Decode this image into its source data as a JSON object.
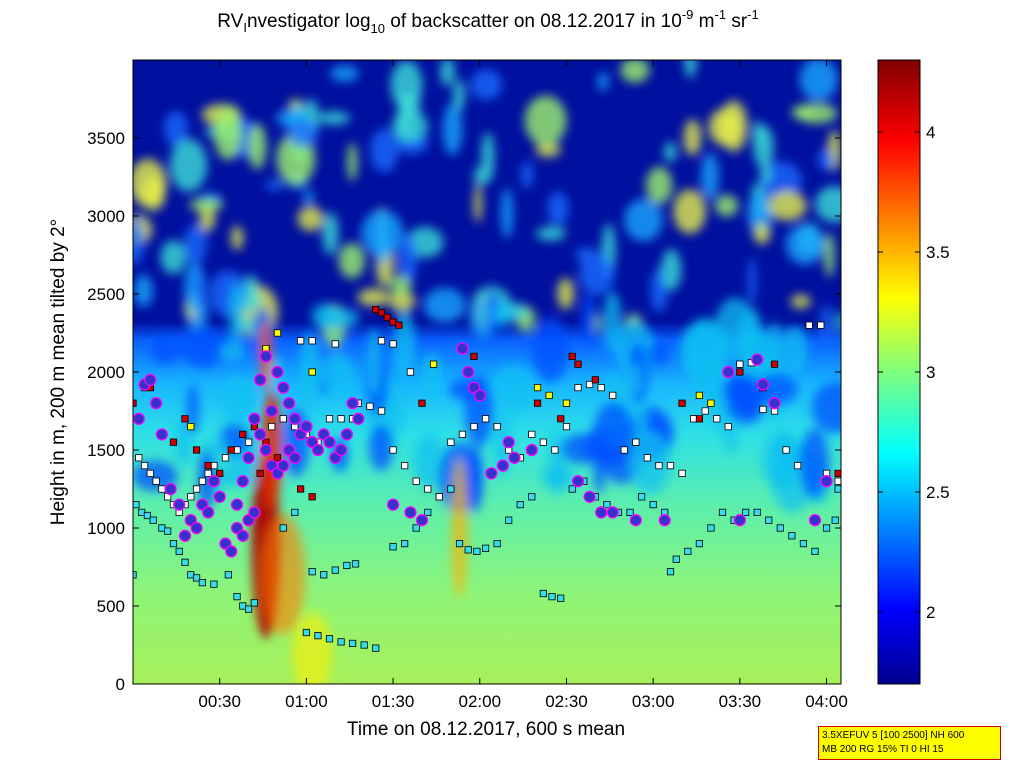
{
  "chart_data": {
    "type": "heatmap",
    "title_parts": {
      "t1": "RV",
      "t1_sub": "I",
      "t2": "nvestigator log",
      "t2_sub": "10",
      "t3": " of backscatter on 08.12.2017 in 10",
      "t3_sup": "-9",
      "t4": " m",
      "t4_sup": "-1",
      "t5": " sr",
      "t5_sup": "-1"
    },
    "xlabel": "Time on 08.12.2017, 600 s mean",
    "ylabel": "Height in m, 200 m mean tilted by 2°",
    "x_range_minutes": [
      0,
      245
    ],
    "x_tick_minutes": [
      30,
      60,
      90,
      120,
      150,
      180,
      210,
      240
    ],
    "x_tick_labels": [
      "00:30",
      "01:00",
      "01:30",
      "02:00",
      "02:30",
      "03:00",
      "03:30",
      "04:00"
    ],
    "ylim": [
      0,
      4000
    ],
    "y_ticks": [
      0,
      500,
      1000,
      1500,
      2000,
      2500,
      3000,
      3500
    ],
    "y_tick_labels": [
      "0",
      "500",
      "1000",
      "1500",
      "2000",
      "2500",
      "3000",
      "3500"
    ],
    "colorbar": {
      "range": [
        1.7,
        4.3
      ],
      "ticks": [
        2,
        2.5,
        3,
        3.5,
        4
      ],
      "tick_labels": [
        "2",
        "2.5",
        "3",
        "3.5",
        "4"
      ],
      "colormap": "jet"
    },
    "layers": [
      {
        "name": "background",
        "value": 2.9,
        "description_color": "#7fff7f"
      },
      {
        "name": "upper_clear",
        "value": 1.75,
        "height_above_m": 2200
      }
    ],
    "marker_colors": {
      "cyan": "#33ddee",
      "white": "#ffffff",
      "red": "#cc0000",
      "yellow": "#ffff00",
      "blue_circle_fill": "#3333cc",
      "blue_circle_edge": "#ff00ff"
    },
    "markers": [
      {
        "series": "cyan",
        "points": [
          [
            1,
            1150
          ],
          [
            3,
            1100
          ],
          [
            5,
            1080
          ],
          [
            7,
            1050
          ],
          [
            10,
            1000
          ],
          [
            12,
            980
          ],
          [
            14,
            900
          ],
          [
            16,
            850
          ],
          [
            18,
            780
          ],
          [
            20,
            700
          ],
          [
            22,
            680
          ],
          [
            24,
            650
          ],
          [
            28,
            640
          ],
          [
            33,
            700
          ],
          [
            36,
            560
          ],
          [
            38,
            500
          ],
          [
            40,
            480
          ],
          [
            42,
            520
          ],
          [
            52,
            1000
          ],
          [
            56,
            1100
          ],
          [
            62,
            720
          ],
          [
            66,
            700
          ],
          [
            70,
            730
          ],
          [
            74,
            760
          ],
          [
            77,
            770
          ],
          [
            60,
            330
          ],
          [
            64,
            310
          ],
          [
            68,
            290
          ],
          [
            72,
            270
          ],
          [
            76,
            260
          ],
          [
            80,
            250
          ],
          [
            84,
            230
          ],
          [
            90,
            880
          ],
          [
            94,
            900
          ],
          [
            98,
            1000
          ],
          [
            102,
            1100
          ],
          [
            106,
            1200
          ],
          [
            110,
            1250
          ],
          [
            113,
            900
          ],
          [
            116,
            860
          ],
          [
            119,
            850
          ],
          [
            122,
            870
          ],
          [
            126,
            900
          ],
          [
            130,
            1050
          ],
          [
            134,
            1150
          ],
          [
            138,
            1200
          ],
          [
            142,
            580
          ],
          [
            145,
            560
          ],
          [
            148,
            550
          ],
          [
            152,
            1250
          ],
          [
            156,
            1300
          ],
          [
            160,
            1200
          ],
          [
            164,
            1150
          ],
          [
            168,
            1100
          ],
          [
            172,
            1100
          ],
          [
            176,
            1200
          ],
          [
            180,
            1150
          ],
          [
            184,
            1100
          ],
          [
            186,
            720
          ],
          [
            188,
            800
          ],
          [
            192,
            850
          ],
          [
            196,
            900
          ],
          [
            200,
            1000
          ],
          [
            204,
            1100
          ],
          [
            208,
            1050
          ],
          [
            212,
            1100
          ],
          [
            216,
            1100
          ],
          [
            220,
            1050
          ],
          [
            224,
            1000
          ],
          [
            228,
            950
          ],
          [
            232,
            900
          ],
          [
            236,
            850
          ],
          [
            240,
            1000
          ],
          [
            243,
            1050
          ],
          [
            0,
            700
          ],
          [
            240,
            1300
          ],
          [
            244,
            1250
          ]
        ]
      },
      {
        "series": "white",
        "points": [
          [
            2,
            1450
          ],
          [
            4,
            1400
          ],
          [
            6,
            1350
          ],
          [
            8,
            1300
          ],
          [
            10,
            1250
          ],
          [
            12,
            1200
          ],
          [
            14,
            1150
          ],
          [
            16,
            1100
          ],
          [
            18,
            1150
          ],
          [
            20,
            1200
          ],
          [
            22,
            1250
          ],
          [
            24,
            1300
          ],
          [
            26,
            1350
          ],
          [
            28,
            1400
          ],
          [
            32,
            1450
          ],
          [
            36,
            1500
          ],
          [
            40,
            1550
          ],
          [
            44,
            1600
          ],
          [
            48,
            1650
          ],
          [
            52,
            1700
          ],
          [
            56,
            1650
          ],
          [
            60,
            1600
          ],
          [
            64,
            1550
          ],
          [
            68,
            1700
          ],
          [
            72,
            1700
          ],
          [
            76,
            1700
          ],
          [
            78,
            1800
          ],
          [
            82,
            1780
          ],
          [
            86,
            1750
          ],
          [
            90,
            1500
          ],
          [
            94,
            1400
          ],
          [
            98,
            1300
          ],
          [
            102,
            1250
          ],
          [
            106,
            1200
          ],
          [
            110,
            1550
          ],
          [
            114,
            1600
          ],
          [
            118,
            1650
          ],
          [
            122,
            1700
          ],
          [
            126,
            1650
          ],
          [
            130,
            1500
          ],
          [
            134,
            1450
          ],
          [
            138,
            1600
          ],
          [
            142,
            1550
          ],
          [
            146,
            1500
          ],
          [
            150,
            1650
          ],
          [
            154,
            1900
          ],
          [
            158,
            1920
          ],
          [
            162,
            1900
          ],
          [
            166,
            1850
          ],
          [
            170,
            1500
          ],
          [
            174,
            1550
          ],
          [
            178,
            1450
          ],
          [
            182,
            1400
          ],
          [
            186,
            1400
          ],
          [
            190,
            1350
          ],
          [
            194,
            1700
          ],
          [
            198,
            1750
          ],
          [
            202,
            1700
          ],
          [
            206,
            1650
          ],
          [
            210,
            2050
          ],
          [
            214,
            2060
          ],
          [
            218,
            1760
          ],
          [
            222,
            1750
          ],
          [
            226,
            1500
          ],
          [
            230,
            1400
          ],
          [
            234,
            2300
          ],
          [
            238,
            2300
          ],
          [
            240,
            1350
          ],
          [
            244,
            1300
          ],
          [
            86,
            2200
          ],
          [
            90,
            2180
          ],
          [
            96,
            2000
          ],
          [
            58,
            2200
          ],
          [
            62,
            2200
          ],
          [
            70,
            2180
          ]
        ]
      },
      {
        "series": "red",
        "points": [
          [
            0,
            1800
          ],
          [
            2,
            1700
          ],
          [
            6,
            1900
          ],
          [
            10,
            1600
          ],
          [
            14,
            1550
          ],
          [
            18,
            1700
          ],
          [
            22,
            1500
          ],
          [
            26,
            1400
          ],
          [
            30,
            1350
          ],
          [
            34,
            1500
          ],
          [
            38,
            1600
          ],
          [
            42,
            1650
          ],
          [
            46,
            1550
          ],
          [
            50,
            1450
          ],
          [
            54,
            1500
          ],
          [
            58,
            1250
          ],
          [
            62,
            1200
          ],
          [
            84,
            2400
          ],
          [
            86,
            2380
          ],
          [
            88,
            2350
          ],
          [
            90,
            2320
          ],
          [
            92,
            2300
          ],
          [
            118,
            2100
          ],
          [
            140,
            1800
          ],
          [
            148,
            1700
          ],
          [
            152,
            2100
          ],
          [
            154,
            2050
          ],
          [
            160,
            1950
          ],
          [
            190,
            1800
          ],
          [
            196,
            1700
          ],
          [
            210,
            2000
          ],
          [
            218,
            1900
          ],
          [
            222,
            2050
          ],
          [
            244,
            1350
          ],
          [
            44,
            1350
          ],
          [
            100,
            1800
          ]
        ]
      },
      {
        "series": "yellow",
        "points": [
          [
            4,
            1900
          ],
          [
            20,
            1650
          ],
          [
            46,
            2150
          ],
          [
            50,
            2250
          ],
          [
            62,
            2000
          ],
          [
            104,
            2050
          ],
          [
            140,
            1900
          ],
          [
            144,
            1850
          ],
          [
            150,
            1800
          ],
          [
            196,
            1850
          ],
          [
            200,
            1800
          ]
        ]
      },
      {
        "series": "blue_circle",
        "points": [
          [
            2,
            1700
          ],
          [
            4,
            1920
          ],
          [
            6,
            1950
          ],
          [
            8,
            1800
          ],
          [
            10,
            1600
          ],
          [
            13,
            1250
          ],
          [
            16,
            1150
          ],
          [
            18,
            950
          ],
          [
            20,
            1050
          ],
          [
            22,
            1000
          ],
          [
            24,
            1150
          ],
          [
            26,
            1100
          ],
          [
            28,
            1300
          ],
          [
            30,
            1200
          ],
          [
            32,
            900
          ],
          [
            34,
            850
          ],
          [
            36,
            1000
          ],
          [
            38,
            1300
          ],
          [
            40,
            1450
          ],
          [
            42,
            1700
          ],
          [
            44,
            1950
          ],
          [
            46,
            2100
          ],
          [
            48,
            1750
          ],
          [
            50,
            2000
          ],
          [
            52,
            1900
          ],
          [
            54,
            1800
          ],
          [
            56,
            1700
          ],
          [
            58,
            1600
          ],
          [
            60,
            1650
          ],
          [
            62,
            1550
          ],
          [
            64,
            1500
          ],
          [
            66,
            1600
          ],
          [
            68,
            1550
          ],
          [
            70,
            1450
          ],
          [
            72,
            1500
          ],
          [
            74,
            1600
          ],
          [
            76,
            1800
          ],
          [
            78,
            1700
          ],
          [
            44,
            1600
          ],
          [
            46,
            1500
          ],
          [
            48,
            1400
          ],
          [
            50,
            1350
          ],
          [
            52,
            1400
          ],
          [
            54,
            1500
          ],
          [
            56,
            1450
          ],
          [
            40,
            1050
          ],
          [
            42,
            1100
          ],
          [
            38,
            950
          ],
          [
            36,
            1150
          ],
          [
            114,
            2150
          ],
          [
            116,
            2000
          ],
          [
            118,
            1900
          ],
          [
            120,
            1850
          ],
          [
            124,
            1350
          ],
          [
            128,
            1400
          ],
          [
            130,
            1550
          ],
          [
            132,
            1450
          ],
          [
            138,
            1500
          ],
          [
            154,
            1300
          ],
          [
            158,
            1200
          ],
          [
            162,
            1100
          ],
          [
            166,
            1100
          ],
          [
            174,
            1050
          ],
          [
            184,
            1050
          ],
          [
            206,
            2000
          ],
          [
            210,
            1050
          ],
          [
            216,
            2080
          ],
          [
            218,
            1920
          ],
          [
            222,
            1800
          ],
          [
            236,
            1050
          ],
          [
            240,
            1300
          ],
          [
            90,
            1150
          ],
          [
            96,
            1100
          ],
          [
            100,
            1050
          ]
        ]
      }
    ]
  },
  "infobox": {
    "line1": "3.5XEFUV 5 [100 2500] NH 600",
    "line2": "MB 200 RG 15% TI 0 HI 15"
  }
}
